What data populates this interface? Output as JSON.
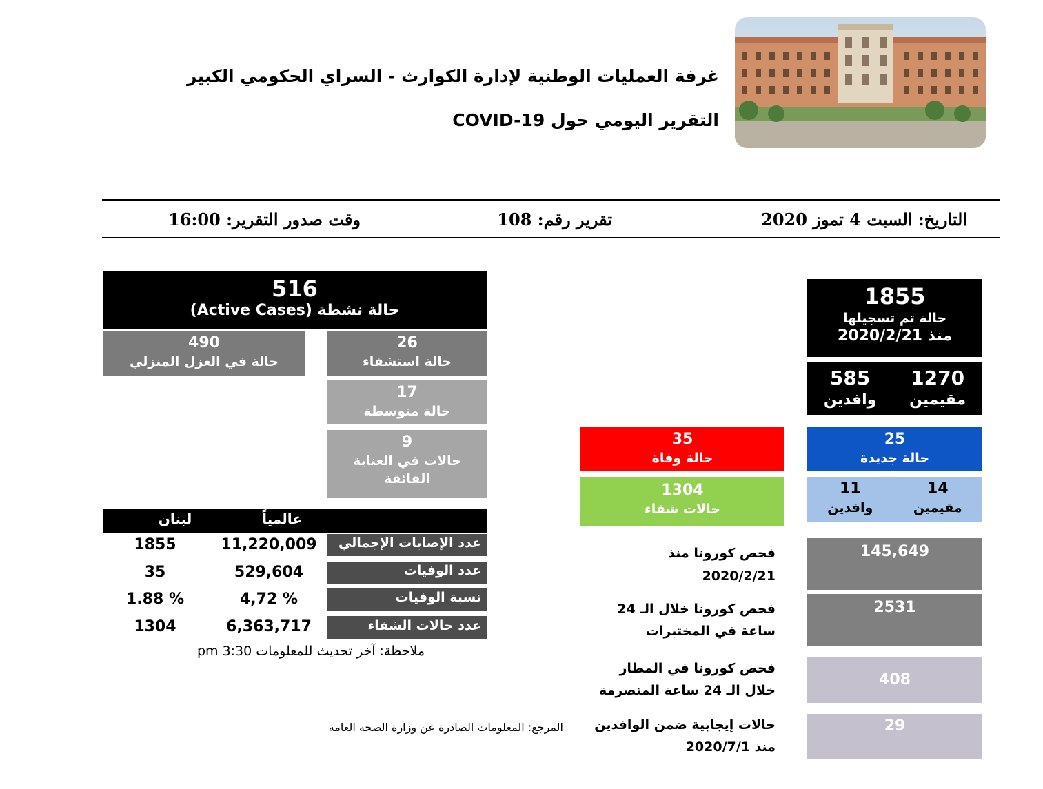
{
  "header": {
    "title_line1": "غرفة العمليات الوطنية لإدارة الكوارث - السراي الحكومي الكبير",
    "title_line2": "التقرير اليومي حول COVID-19"
  },
  "meta": {
    "date": "التاريخ: السبت 4 تموز 2020",
    "report_number": "تقرير رقم: 108",
    "issue_time": "وقت صدور التقرير: 16:00"
  },
  "active": {
    "value": "516",
    "label": "حالة نشطة (Active Cases)",
    "home_isolation": {
      "value": "490",
      "label": "حالة في العزل المنزلي"
    },
    "hospital": {
      "value": "26",
      "label": "حالة استشفاء"
    },
    "moderate": {
      "value": "17",
      "label": "حالة متوسطة"
    },
    "icu": {
      "value": "9",
      "label_line1": "حالات في العناية",
      "label_line2": "الفائقة"
    }
  },
  "registered": {
    "value": "1855",
    "label": "حالة تم تسجيلها",
    "since": "منذ 2020/2/21",
    "residents": {
      "value": "1270",
      "label": "مقيمين"
    },
    "arrivals": {
      "value": "585",
      "label": "وافدين"
    }
  },
  "new_cases": {
    "value": "25",
    "label": "حالة جديدة",
    "residents": {
      "value": "14",
      "label": "مقيمين"
    },
    "arrivals": {
      "value": "11",
      "label": "وافدين"
    }
  },
  "deaths": {
    "value": "35",
    "label": "حالة وفاة"
  },
  "recovered": {
    "value": "1304",
    "label": "حالات شفاء"
  },
  "comparison": {
    "col_lebanon": "لبنان",
    "col_global": "عالمياً",
    "rows": [
      {
        "label": "عدد الإصابات الإجمالي",
        "global": "11,220,009",
        "lebanon": "1855"
      },
      {
        "label": "عدد الوفيات",
        "global": "529,604",
        "lebanon": "35"
      },
      {
        "label": "نسبة الوفيات",
        "global": "4,72 %",
        "lebanon": "1.88 %"
      },
      {
        "label": "عدد حالات الشفاء",
        "global": "6,363,717",
        "lebanon": "1304"
      }
    ],
    "note": "ملاحظة: آخر تحديث للمعلومات 3:30 pm"
  },
  "tests": [
    {
      "label_line1": "فحص كورونا منذ",
      "label_line2": "2020/2/21",
      "value": "145,649"
    },
    {
      "label_line1": "فحص كورونا خلال الـ 24",
      "label_line2": "ساعة في المختبرات",
      "value": "2531"
    },
    {
      "label_line1": "فحص كورونا في المطار",
      "label_line2": "خلال الـ 24 ساعة المنصرمة",
      "value": "408"
    },
    {
      "label_line1": "حالات إيجابية ضمن الوافدين",
      "label_line2": "منذ 2020/7/1",
      "value": "29"
    }
  ],
  "source": "المرجع: المعلومات الصادرة عن وزارة الصحة العامة",
  "colors": {
    "black": "#000000",
    "gray": "#7b7b7b",
    "light_gray": "#a6a6a6",
    "red": "#ff0000",
    "green": "#92d050",
    "blue": "#0e55c5",
    "light_blue": "#a4c2e8",
    "lilac": "#c5c0ce"
  }
}
